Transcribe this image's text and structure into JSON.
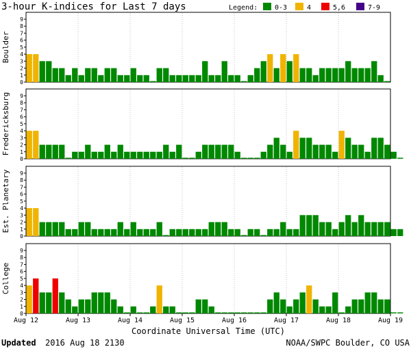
{
  "header": {
    "title": "3-hour K-indices for Last 7 days",
    "legend_title": "Legend:",
    "legend": [
      {
        "label": "0-3",
        "color": "#008800"
      },
      {
        "label": "4",
        "color": "#f0b400"
      },
      {
        "label": "5,6",
        "color": "#ee0000"
      },
      {
        "label": "7-9",
        "color": "#440088"
      }
    ]
  },
  "footer": {
    "updated_label": "Updated",
    "updated_value": "2016 Aug 18 2130",
    "credit": "NOAA/SWPC Boulder, CO USA"
  },
  "chart_data": {
    "type": "bar",
    "title": "3-hour K-indices for Last 7 days",
    "xlabel": "Coordinate Universal Time (UTC)",
    "ylim": [
      0,
      9
    ],
    "yticks": [
      "0",
      "1",
      "2",
      "3",
      "4",
      "5",
      "6",
      "7",
      "8",
      "9"
    ],
    "x_tick_labels": [
      "Aug 12",
      "Aug 13",
      "Aug 14",
      "Aug 15",
      "Aug 16",
      "Aug 17",
      "Aug 18",
      "Aug 19"
    ],
    "intervals_per_day": 8,
    "grid": false,
    "legend_position": "top-right",
    "panels": [
      {
        "name": "Boulder",
        "values": [
          4,
          4,
          3,
          3,
          2,
          2,
          1,
          2,
          1,
          2,
          2,
          1,
          2,
          2,
          1,
          1,
          2,
          1,
          1,
          0,
          2,
          2,
          1,
          1,
          1,
          1,
          1,
          3,
          1,
          1,
          3,
          1,
          1,
          0,
          1,
          2,
          3,
          4,
          2,
          4,
          3,
          4,
          2,
          2,
          1,
          2,
          2,
          2,
          2,
          3,
          2,
          2,
          2,
          3,
          1,
          0
        ]
      },
      {
        "name": "Fredericksburg",
        "values": [
          4,
          4,
          2,
          2,
          2,
          2,
          0,
          1,
          1,
          2,
          1,
          1,
          2,
          1,
          2,
          1,
          1,
          1,
          1,
          1,
          1,
          2,
          1,
          2,
          0,
          0,
          1,
          2,
          2,
          2,
          2,
          2,
          1,
          0,
          0,
          0,
          1,
          2,
          3,
          2,
          1,
          4,
          3,
          3,
          2,
          2,
          2,
          1,
          4,
          3,
          2,
          2,
          1,
          3,
          3,
          2,
          1,
          0
        ]
      },
      {
        "name": "Est. Planetary",
        "values": [
          4,
          4,
          2,
          2,
          2,
          2,
          1,
          1,
          2,
          2,
          1,
          1,
          1,
          1,
          2,
          1,
          2,
          1,
          1,
          1,
          2,
          0,
          1,
          1,
          1,
          1,
          1,
          1,
          2,
          2,
          2,
          1,
          1,
          0,
          1,
          1,
          0,
          1,
          1,
          2,
          1,
          1,
          3,
          3,
          3,
          2,
          2,
          1,
          2,
          3,
          2,
          3,
          2,
          2,
          2,
          2,
          1,
          1
        ]
      },
      {
        "name": "College",
        "values": [
          4,
          5,
          3,
          3,
          5,
          3,
          2,
          1,
          2,
          2,
          3,
          3,
          3,
          2,
          1,
          0,
          1,
          0,
          0,
          1,
          4,
          1,
          1,
          0,
          0,
          0,
          2,
          2,
          1,
          0,
          0,
          0,
          0,
          0,
          0,
          0,
          0,
          2,
          3,
          2,
          1,
          2,
          3,
          4,
          2,
          1,
          1,
          3,
          0,
          1,
          2,
          2,
          3,
          3,
          2,
          2,
          0,
          0
        ]
      }
    ]
  }
}
